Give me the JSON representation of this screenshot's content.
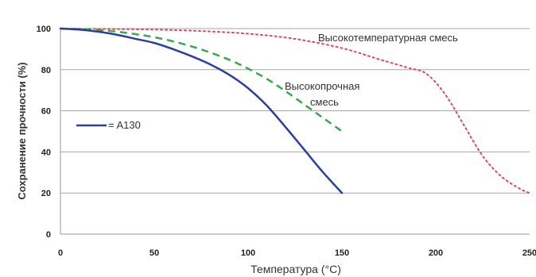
{
  "chart_data": {
    "type": "line",
    "xlabel": "Температура (°C)",
    "ylabel": "Сохранение прочности (%)",
    "xlim": [
      0,
      250
    ],
    "ylim": [
      0,
      100
    ],
    "x_ticks": [
      "0",
      "50",
      "100",
      "150",
      "200",
      "250"
    ],
    "y_ticks": [
      "0",
      "20",
      "40",
      "60",
      "80",
      "100"
    ],
    "grid": "horizontal",
    "legend": {
      "position": "left-middle",
      "entries": [
        "= A130"
      ]
    },
    "annotations": {
      "high_temp": "Высокотемпературная смесь",
      "high_strength_line1": "Высокопрочная",
      "high_strength_line2": "смесь"
    },
    "series": [
      {
        "name": "A130",
        "color": "#2b3f9e",
        "style": "solid",
        "x": [
          0,
          10,
          20,
          30,
          40,
          50,
          60,
          70,
          80,
          90,
          100,
          110,
          120,
          130,
          140,
          150
        ],
        "y": [
          100,
          99.5,
          98.5,
          97,
          95,
          93,
          90,
          86.5,
          82.5,
          77.5,
          71,
          62.5,
          52,
          41,
          30,
          20
        ]
      },
      {
        "name": "Высокопрочная смесь",
        "color": "#3aa84a",
        "style": "dashed",
        "x": [
          0,
          10,
          20,
          30,
          40,
          50,
          60,
          70,
          80,
          90,
          100,
          110,
          120,
          130,
          140,
          150
        ],
        "y": [
          100,
          99.8,
          99.3,
          98.5,
          97.3,
          95.8,
          93.8,
          91.3,
          88.3,
          84.8,
          80.5,
          75.5,
          69.5,
          63,
          56.5,
          50
        ]
      },
      {
        "name": "Высокотемпературная смесь",
        "color": "#e0475a",
        "style": "dotted",
        "x": [
          0,
          25,
          50,
          75,
          100,
          125,
          150,
          170,
          185,
          195,
          205,
          215,
          225,
          235,
          245,
          250
        ],
        "y": [
          100,
          99.8,
          99.5,
          98.8,
          97.5,
          95,
          90.5,
          85,
          81,
          78,
          68,
          53,
          38,
          28,
          22,
          20
        ]
      }
    ]
  }
}
